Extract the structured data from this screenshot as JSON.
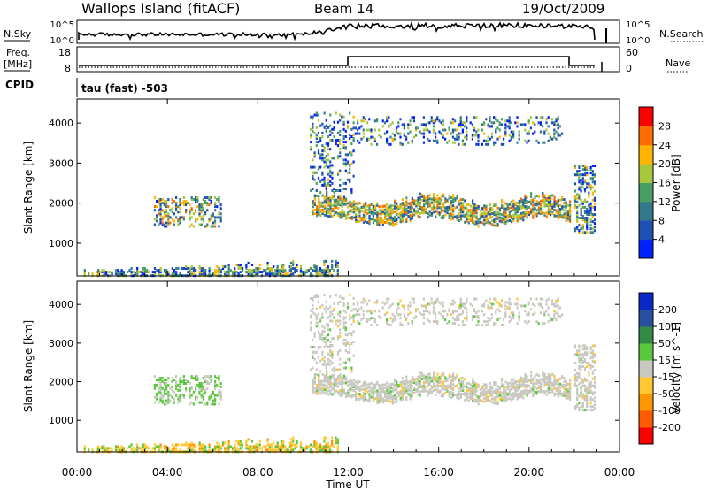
{
  "header": {
    "site": "Wallops Island (fitACF)",
    "beam": "Beam 14",
    "date": "19/Oct/2009"
  },
  "strips": {
    "nsky_label": "N.Sky",
    "nsky_ticks": [
      "10^5",
      "10^0"
    ],
    "nsearch_label": "N.Search",
    "nsearch_ticks": [
      "10^5",
      "10^0"
    ],
    "freq_label": "Freq.",
    "freq_unit": "[MHz]",
    "freq_ticks": [
      "18",
      "8"
    ],
    "nave_label": "Nave",
    "nave_ticks": [
      "60",
      "0"
    ],
    "cpid_label": "CPID",
    "cpid_value": "tau (fast) -503"
  },
  "chart_data": [
    {
      "type": "heatmap",
      "name": "power",
      "ylabel": "Slant Range [km]",
      "yticks": [
        "1000",
        "2000",
        "3000",
        "4000"
      ],
      "ylim": [
        180,
        4600
      ],
      "colorbar_label": "Power [dB]",
      "colorbar_ticks": [
        "4",
        "8",
        "12",
        "16",
        "20",
        "24",
        "28"
      ],
      "colorbar_range": [
        0,
        32
      ],
      "colors": [
        "#0020ff",
        "#1f50b4",
        "#34788c",
        "#4aa064",
        "#a8c83c",
        "#ffb400",
        "#ff6e00",
        "#ff0000"
      ],
      "regions": [
        {
          "t0": 0.3,
          "t1": 11.5,
          "r0": 220,
          "r1": 520,
          "density": 0.55,
          "level": 0.35
        },
        {
          "t0": 3.4,
          "t1": 6.4,
          "r0": 1450,
          "r1": 2200,
          "density": 0.3,
          "level": 0.45
        },
        {
          "t0": 10.4,
          "t1": 21.8,
          "r0": 1400,
          "r1": 2250,
          "density": 0.65,
          "level": 0.5
        },
        {
          "t0": 10.3,
          "t1": 12.2,
          "r0": 2300,
          "r1": 4300,
          "density": 0.2,
          "level": 0.3
        },
        {
          "t0": 12.2,
          "t1": 21.5,
          "r0": 3500,
          "r1": 4200,
          "density": 0.2,
          "level": 0.3
        },
        {
          "t0": 22.0,
          "t1": 22.9,
          "r0": 1300,
          "r1": 3000,
          "density": 0.4,
          "level": 0.35
        }
      ]
    },
    {
      "type": "heatmap",
      "name": "velocity",
      "ylabel": "Slant Range [km]",
      "yticks": [
        "1000",
        "2000",
        "3000",
        "4000"
      ],
      "ylim": [
        180,
        4600
      ],
      "colorbar_label": "Velocity [m s^-1]",
      "colorbar_ticks": [
        "-200",
        "-100",
        "-50",
        "-15",
        "15",
        "50",
        "100",
        "200"
      ],
      "colorbar_range": [
        -250,
        250
      ],
      "colors": [
        "#ff0000",
        "#ff5a00",
        "#ff9600",
        "#ffc832",
        "#c8c8c0",
        "#5ac83c",
        "#328c46",
        "#2850a0",
        "#0a28c8"
      ],
      "xlabel": "Time UT",
      "xticks": [
        "00:00",
        "04:00",
        "08:00",
        "12:00",
        "16:00",
        "20:00",
        "00:00"
      ],
      "xlim": [
        0,
        24
      ]
    }
  ]
}
